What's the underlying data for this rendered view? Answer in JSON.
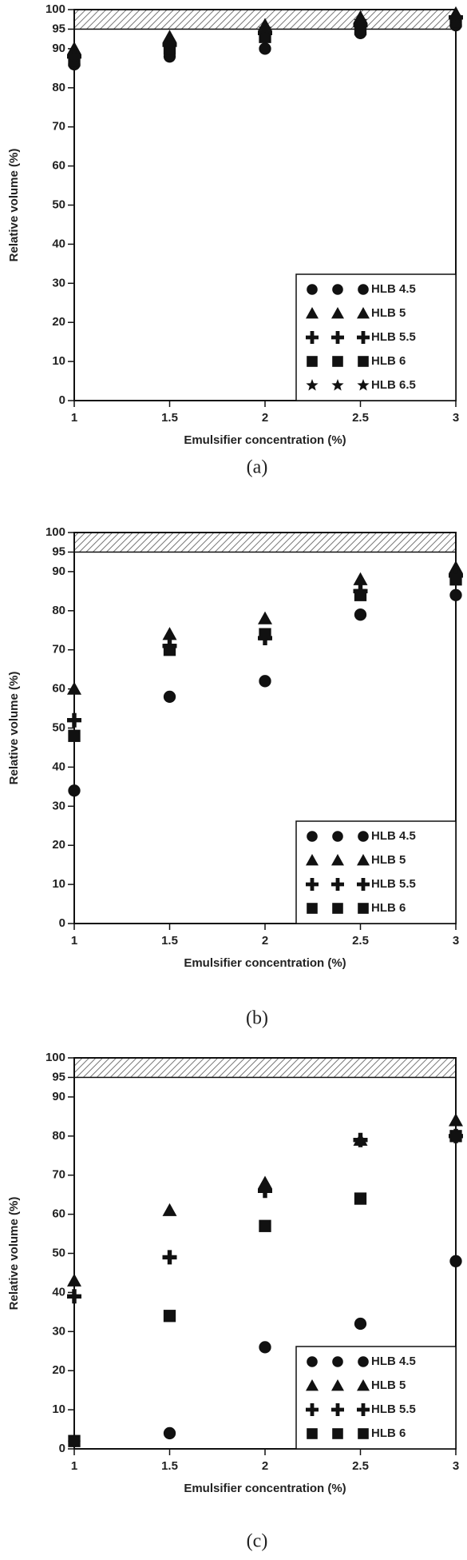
{
  "chart_data": [
    {
      "type": "scatter",
      "caption": "(a)",
      "xlabel": "Emulsifier concentration (%)",
      "ylabel": "Relative volume (%)",
      "x": [
        1,
        1.5,
        2,
        2.5,
        3
      ],
      "xlim": [
        1,
        3
      ],
      "xticks": [
        1,
        1.5,
        2,
        2.5,
        3
      ],
      "ylim": [
        0,
        100
      ],
      "yticks": [
        0,
        10,
        20,
        30,
        40,
        50,
        60,
        70,
        80,
        90,
        95,
        100
      ],
      "shaded_range": [
        95,
        100
      ],
      "legend": "lower right",
      "series": [
        {
          "name": "HLB 4.5",
          "marker": "circle",
          "color": "#111111",
          "values": [
            86,
            88,
            90,
            94,
            96
          ]
        },
        {
          "name": "HLB 5",
          "marker": "triangle",
          "color": "#111111",
          "values": [
            90,
            93,
            96,
            98,
            99
          ]
        },
        {
          "name": "HLB 5.5",
          "marker": "plus",
          "color": "#111111",
          "values": [
            88,
            91,
            94,
            96,
            98
          ]
        },
        {
          "name": "HLB 6",
          "marker": "square",
          "color": "#111111",
          "values": [
            87,
            90,
            93,
            95,
            97
          ]
        },
        {
          "name": "HLB 6.5",
          "marker": "star",
          "color": "#111111",
          "values": [
            88,
            91,
            95,
            97,
            98
          ]
        }
      ]
    },
    {
      "type": "scatter",
      "caption": "(b)",
      "xlabel": "Emulsifier concentration (%)",
      "ylabel": "Relative volume (%)",
      "x": [
        1,
        1.5,
        2,
        2.5,
        3
      ],
      "xlim": [
        1,
        3
      ],
      "xticks": [
        1,
        1.5,
        2,
        2.5,
        3
      ],
      "ylim": [
        0,
        100
      ],
      "yticks": [
        0,
        10,
        20,
        30,
        40,
        50,
        60,
        70,
        80,
        90,
        95,
        100
      ],
      "shaded_range": [
        95,
        100
      ],
      "legend": "lower right",
      "series": [
        {
          "name": "HLB 4.5",
          "marker": "circle",
          "color": "#111111",
          "values": [
            34,
            58,
            62,
            79,
            84
          ]
        },
        {
          "name": "HLB 5",
          "marker": "triangle",
          "color": "#111111",
          "values": [
            60,
            74,
            78,
            88,
            91
          ]
        },
        {
          "name": "HLB 5.5",
          "marker": "plus",
          "color": "#111111",
          "values": [
            52,
            71,
            73,
            85,
            89
          ]
        },
        {
          "name": "HLB 6",
          "marker": "square",
          "color": "#111111",
          "values": [
            48,
            70,
            74,
            84,
            88
          ]
        }
      ]
    },
    {
      "type": "scatter",
      "caption": "(c)",
      "xlabel": "Emulsifier concentration (%)",
      "ylabel": "Relative volume (%)",
      "x": [
        1,
        1.5,
        2,
        2.5,
        3
      ],
      "xlim": [
        1,
        3
      ],
      "xticks": [
        1,
        1.5,
        2,
        2.5,
        3
      ],
      "ylim": [
        0,
        100
      ],
      "yticks": [
        0,
        10,
        20,
        30,
        40,
        50,
        60,
        70,
        80,
        90,
        95,
        100
      ],
      "shaded_range": [
        95,
        100
      ],
      "legend": "lower right",
      "series": [
        {
          "name": "HLB 4.5",
          "marker": "circle",
          "color": "#111111",
          "values": [
            2,
            4,
            26,
            32,
            48
          ]
        },
        {
          "name": "HLB 5",
          "marker": "triangle",
          "color": "#111111",
          "values": [
            43,
            61,
            68,
            79,
            84
          ]
        },
        {
          "name": "HLB 5.5",
          "marker": "plus",
          "color": "#111111",
          "values": [
            39,
            49,
            66,
            79,
            80
          ]
        },
        {
          "name": "HLB 6",
          "marker": "square",
          "color": "#111111",
          "values": [
            2,
            34,
            57,
            64,
            80
          ]
        }
      ]
    }
  ]
}
